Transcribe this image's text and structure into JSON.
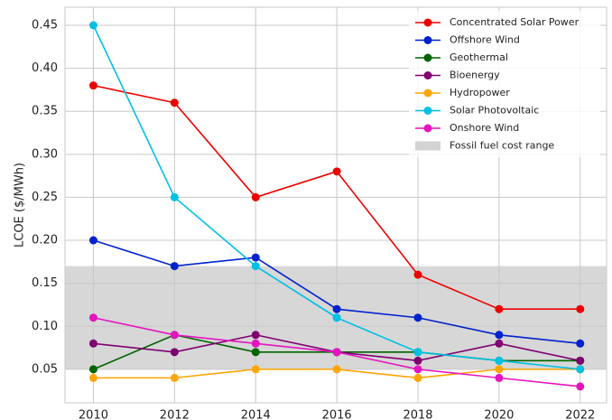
{
  "chart_data": {
    "type": "line",
    "ylabel": "LCOE ($/MWh)",
    "x": [
      2010,
      2012,
      2014,
      2016,
      2018,
      2020,
      2022
    ],
    "xlim": [
      2009.3,
      2022.65
    ],
    "xticks": [
      2010,
      2012,
      2014,
      2016,
      2018,
      2020,
      2022
    ],
    "ylim": [
      0.011,
      0.471
    ],
    "yticks": [
      0.05,
      {
        "value": 0.1,
        "label": "0.10"
      },
      0.15,
      {
        "value": 0.2,
        "label": "0.20"
      },
      0.25,
      {
        "value": 0.3,
        "label": "0.30"
      },
      0.35,
      {
        "value": 0.4,
        "label": "0.40"
      },
      0.45
    ],
    "grid": true,
    "legend": "upper right",
    "series": [
      {
        "name": "Concentrated Solar Power",
        "color": "#ee0000",
        "values": [
          0.38,
          0.36,
          0.25,
          0.28,
          0.16,
          0.12,
          0.12
        ]
      },
      {
        "name": "Offshore Wind",
        "color": "#0022cc",
        "values": [
          0.2,
          0.17,
          0.18,
          0.12,
          0.11,
          0.09,
          0.08
        ]
      },
      {
        "name": "Geothermal",
        "color": "#006400",
        "values": [
          0.05,
          0.09,
          0.07,
          0.07,
          0.07,
          0.06,
          0.06
        ]
      },
      {
        "name": "Bioenergy",
        "color": "#800070",
        "values": [
          0.08,
          0.07,
          0.09,
          0.07,
          0.06,
          0.08,
          0.06
        ]
      },
      {
        "name": "Hydropower",
        "color": "#ffa500",
        "values": [
          0.04,
          0.04,
          0.05,
          0.05,
          0.04,
          0.05,
          0.05
        ]
      },
      {
        "name": "Solar Photovoltaic",
        "color": "#00c0e4",
        "values": [
          0.45,
          0.25,
          0.17,
          0.11,
          0.07,
          0.06,
          0.05
        ]
      },
      {
        "name": "Onshore Wind",
        "color": "#e614c0",
        "values": [
          0.11,
          0.09,
          0.08,
          0.07,
          0.05,
          0.04,
          0.03
        ]
      }
    ],
    "fossil_band": {
      "name": "Fossil fuel cost range",
      "range": [
        0.05,
        0.17
      ],
      "color": "#d3d3d3"
    }
  }
}
